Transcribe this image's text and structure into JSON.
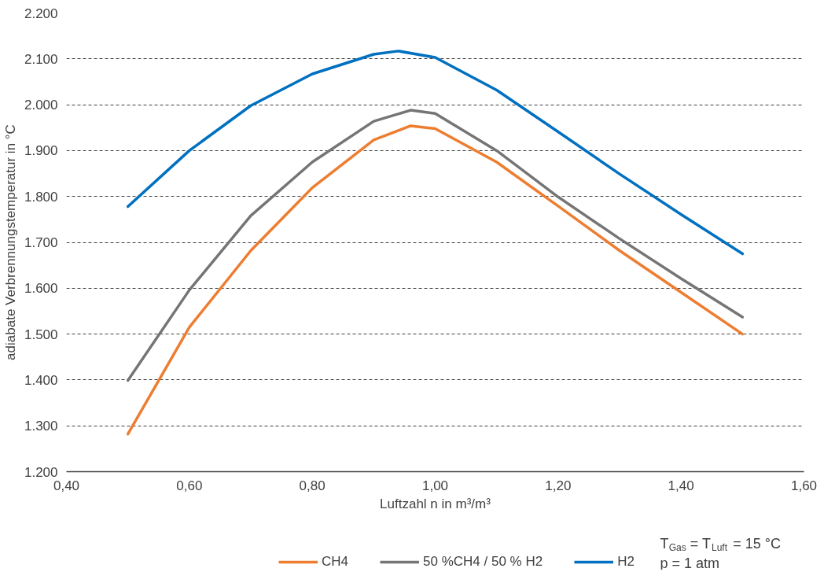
{
  "chart_data": {
    "type": "line",
    "xlabel": "Luftzahl n in m³/m³",
    "ylabel": "adiabate Verbrennungstemperatur in °C",
    "xlim": [
      0.4,
      1.6
    ],
    "ylim": [
      1200,
      2200
    ],
    "xticks": [
      {
        "value": 0.4,
        "label": "0,40"
      },
      {
        "value": 0.6,
        "label": "0,60"
      },
      {
        "value": 0.8,
        "label": "0,80"
      },
      {
        "value": 1.0,
        "label": "1,00"
      },
      {
        "value": 1.2,
        "label": "1,20"
      },
      {
        "value": 1.4,
        "label": "1,40"
      },
      {
        "value": 1.6,
        "label": "1,60"
      }
    ],
    "yticks": [
      {
        "value": 1200,
        "label": "1.200"
      },
      {
        "value": 1300,
        "label": "1.300"
      },
      {
        "value": 1400,
        "label": "1.400"
      },
      {
        "value": 1500,
        "label": "1.500"
      },
      {
        "value": 1600,
        "label": "1.600"
      },
      {
        "value": 1700,
        "label": "1.700"
      },
      {
        "value": 1800,
        "label": "1.800"
      },
      {
        "value": 1900,
        "label": "1.900"
      },
      {
        "value": 2000,
        "label": "2.000"
      },
      {
        "value": 2100,
        "label": "2.100"
      },
      {
        "value": 2200,
        "label": "2.200"
      }
    ],
    "grid": "y",
    "legend": "bottom",
    "marker": "none",
    "line_style": "solid",
    "series": [
      {
        "name": "CH4",
        "color": "#ed7d31",
        "x": [
          0.5,
          0.6,
          0.7,
          0.8,
          0.9,
          0.96,
          1.0,
          1.1,
          1.2,
          1.3,
          1.4,
          1.5
        ],
        "values": [
          1282,
          1515,
          1682,
          1819,
          1923,
          1954,
          1948,
          1875,
          1779,
          1682,
          1591,
          1500
        ]
      },
      {
        "name": "50 %CH4 / 50 % H2",
        "color": "#757575",
        "x": [
          0.5,
          0.6,
          0.7,
          0.8,
          0.9,
          0.96,
          1.0,
          1.1,
          1.2,
          1.3,
          1.4,
          1.5
        ],
        "values": [
          1399,
          1596,
          1758,
          1875,
          1964,
          1988,
          1981,
          1900,
          1799,
          1708,
          1621,
          1537
        ]
      },
      {
        "name": "H2",
        "color": "#0070c0",
        "x": [
          0.5,
          0.6,
          0.7,
          0.8,
          0.9,
          0.94,
          1.0,
          1.1,
          1.2,
          1.3,
          1.4,
          1.5
        ],
        "values": [
          1778,
          1900,
          1998,
          2067,
          2110,
          2117,
          2103,
          2032,
          1941,
          1849,
          1761,
          1675
        ]
      }
    ],
    "annotations": [
      "T$_{Gas}$ = T$_{Luft}$ = 15 °C",
      "p = 1 atm"
    ]
  }
}
